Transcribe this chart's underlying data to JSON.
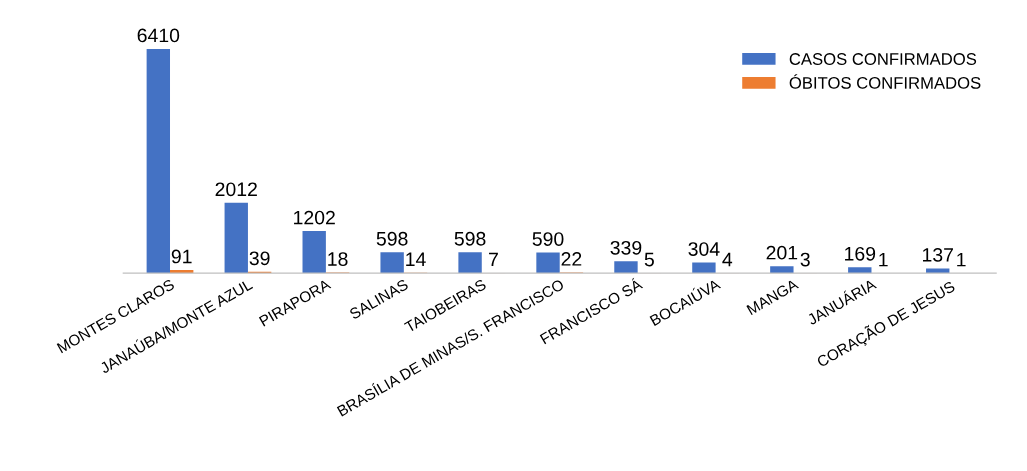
{
  "chart_data": {
    "type": "bar",
    "categories": [
      "MONTES CLAROS",
      "JANAÚBA/MONTE AZUL",
      "PIRAPORA",
      "SALINAS",
      "TAIOBEIRAS",
      "BRASÍLIA DE MINAS/S. FRANCISCO",
      "FRANCISCO SÁ",
      "BOCAIÚVA",
      "MANGA",
      "JANUÁRIA",
      "CORAÇÃO DE JESUS"
    ],
    "series": [
      {
        "name": "CASOS CONFIRMADOS",
        "color": "#4472c4",
        "values": [
          6410,
          2012,
          1202,
          598,
          598,
          590,
          339,
          304,
          201,
          169,
          137
        ]
      },
      {
        "name": "ÓBITOS CONFIRMADOS",
        "color": "#ed7d31",
        "values": [
          91,
          39,
          18,
          14,
          7,
          22,
          5,
          4,
          3,
          1,
          1
        ]
      }
    ],
    "data_labels": true,
    "legend": "top right",
    "grid": false
  }
}
